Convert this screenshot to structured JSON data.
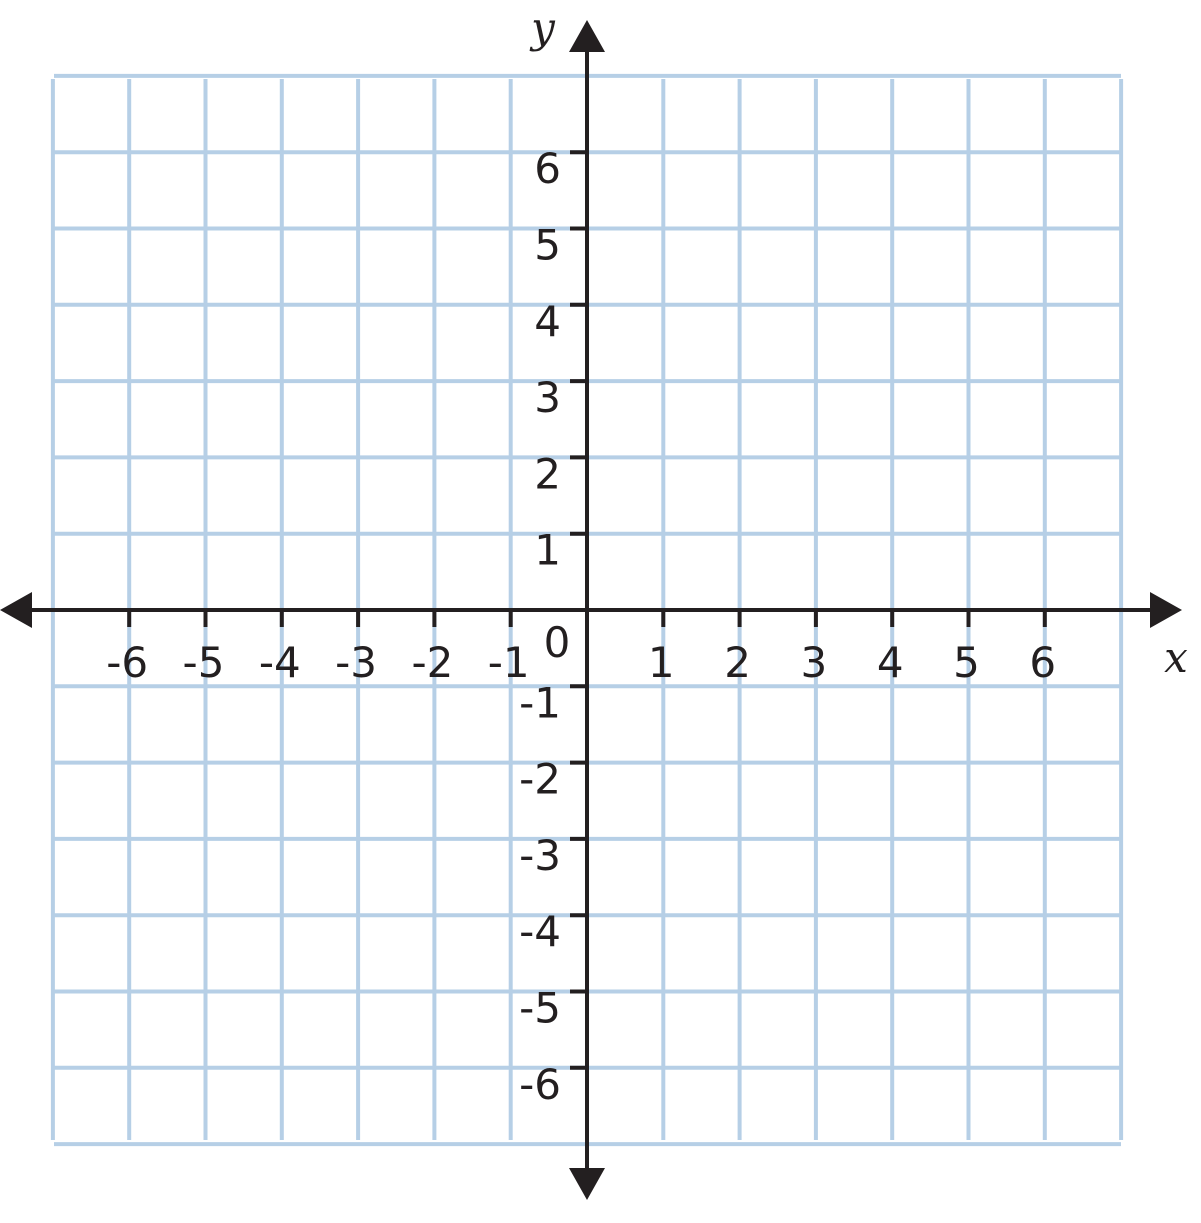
{
  "colors": {
    "grid": "#b6cfe6",
    "axis": "#231f20",
    "background": "#ffffff"
  },
  "axes": {
    "x_name": "x",
    "y_name": "y",
    "origin_label": "0",
    "x_range": [
      -7,
      7
    ],
    "y_range": [
      -7,
      7
    ],
    "grid_step": 1
  },
  "x_ticks": [
    {
      "value": -6,
      "label": "-6"
    },
    {
      "value": -5,
      "label": "-5"
    },
    {
      "value": -4,
      "label": "-4"
    },
    {
      "value": -3,
      "label": "-3"
    },
    {
      "value": -2,
      "label": "-2"
    },
    {
      "value": -1,
      "label": "-1"
    },
    {
      "value": 1,
      "label": "1"
    },
    {
      "value": 2,
      "label": "2"
    },
    {
      "value": 3,
      "label": "3"
    },
    {
      "value": 4,
      "label": "4"
    },
    {
      "value": 5,
      "label": "5"
    },
    {
      "value": 6,
      "label": "6"
    }
  ],
  "y_ticks": [
    {
      "value": 6,
      "label": "6"
    },
    {
      "value": 5,
      "label": "5"
    },
    {
      "value": 4,
      "label": "4"
    },
    {
      "value": 3,
      "label": "3"
    },
    {
      "value": 2,
      "label": "2"
    },
    {
      "value": 1,
      "label": "1"
    },
    {
      "value": -1,
      "label": "-1"
    },
    {
      "value": -2,
      "label": "-2"
    },
    {
      "value": -3,
      "label": "-3"
    },
    {
      "value": -4,
      "label": "-4"
    },
    {
      "value": -5,
      "label": "-5"
    },
    {
      "value": -6,
      "label": "-6"
    }
  ]
}
